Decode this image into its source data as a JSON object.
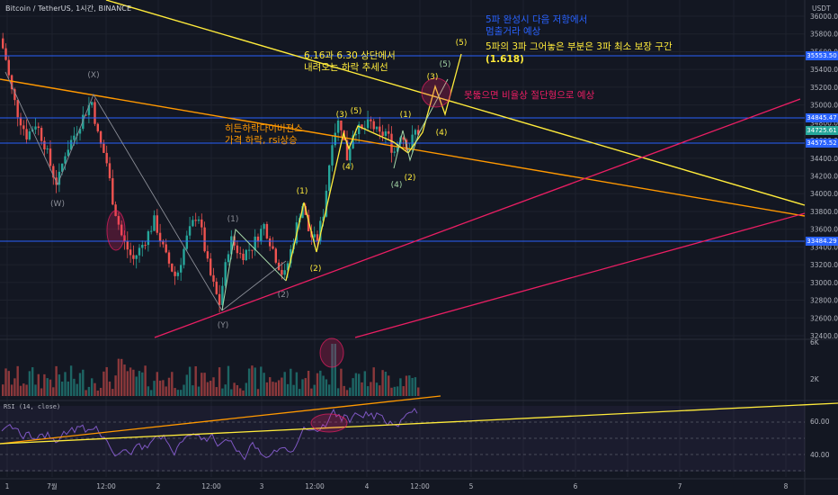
{
  "header": {
    "title": "Bitcoin / TetherUS, 1시간, BINANCE",
    "currency": "USDT"
  },
  "price_axis": {
    "ticks": [
      "36000.00",
      "35800.00",
      "35600.00",
      "35400.00",
      "35200.00",
      "35000.00",
      "34800.00",
      "34600.00",
      "34400.00",
      "34200.00",
      "34000.00",
      "33800.00",
      "33600.00",
      "33400.00",
      "33200.00",
      "33000.00",
      "32800.00",
      "32600.00",
      "32400.00"
    ],
    "tags": [
      {
        "label": "35553.50",
        "color": "#2962ff"
      },
      {
        "label": "34845.47",
        "color": "#2962ff"
      },
      {
        "label": "34725.61",
        "color": "#26a69a"
      },
      {
        "label": "34575.52",
        "color": "#2962ff"
      },
      {
        "label": "33484.29",
        "color": "#2962ff"
      }
    ]
  },
  "volume_axis": {
    "ticks": [
      "6K",
      "2K"
    ]
  },
  "rsi_axis": {
    "ticks": [
      "60.00",
      "40.00"
    ],
    "label": "RSI (14, close)"
  },
  "time_axis": {
    "ticks": [
      "1",
      "7월",
      "12:00",
      "2",
      "12:00",
      "3",
      "12:00",
      "4",
      "12:00",
      "5",
      "6",
      "7",
      "8"
    ]
  },
  "annotations": {
    "blue_1": "5파 완성시 다음 저항에서",
    "blue_2": "멈출거라 예상",
    "yellow_1": "5파의 3파 그어놓은 부분은 3파 최소 보장 구간",
    "yellow_2": "(1.618)",
    "trend_1": "6.16과 6.30 상단에서",
    "trend_2": "내려오는 하락 추세선",
    "pink": "못뚫으면 비율상 절단형으로 예상",
    "orange_1": "히든하락다이버젼스",
    "orange_2": "가격 하락, rsi상승"
  },
  "wave_labels": {
    "X": "(X)",
    "W": "(W)",
    "Y": "(Y)",
    "g1": "(1)",
    "g2": "(2)",
    "w1": "(1)",
    "w2": "(2)",
    "w3": "(3)",
    "w4": "(4)",
    "w5": "(5)",
    "s1": "(1)",
    "s2": "(2)",
    "s3": "(3)",
    "s4": "(4)",
    "s5": "(5)",
    "ga": "(4)",
    "gb": "(5)"
  },
  "colors": {
    "background": "#131722",
    "up": "#26a69a",
    "down": "#ef5350",
    "grid": "#1e222d",
    "yellow": "#ffeb3b",
    "orange": "#ff9800",
    "pink": "#e91e63",
    "blue": "#2962ff",
    "rsi": "#7e57c2"
  }
}
